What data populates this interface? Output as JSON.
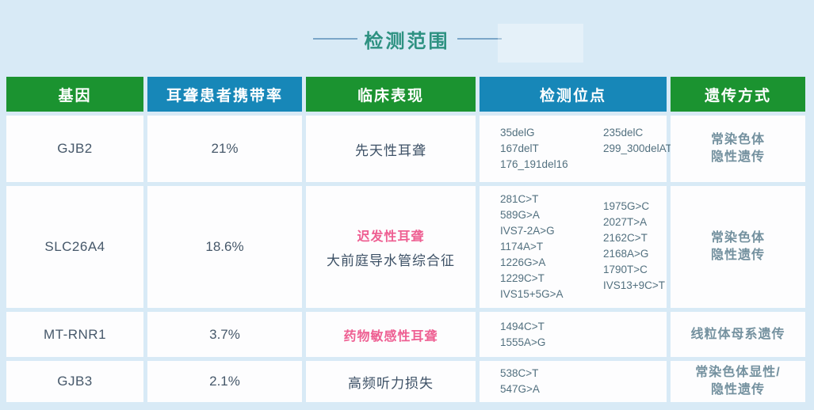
{
  "title": "检测范围",
  "colors": {
    "background": "#d8eaf6",
    "cell_background": "#fdfdfe",
    "header_green": "#1b9330",
    "header_blue": "#1787b8",
    "title_teal": "#2d9181",
    "dash_line": "#7aa6c8",
    "body_text": "#46586a",
    "sites_text": "#52707f",
    "inheritance_text": "#74919f",
    "highlight_pink": "#ee5f92"
  },
  "chart_data": {
    "type": "table",
    "title": "检测范围",
    "columns": [
      {
        "label": "基因",
        "header_color": "green"
      },
      {
        "label": "耳聋患者携带率",
        "header_color": "blue"
      },
      {
        "label": "临床表现",
        "header_color": "green"
      },
      {
        "label": "检测位点",
        "header_color": "blue"
      },
      {
        "label": "遗传方式",
        "header_color": "green"
      }
    ],
    "rows": [
      {
        "gene": "GJB2",
        "carrier_rate": "21%",
        "clinical_highlight": "",
        "clinical_text": "先天性耳聋",
        "sites_col1": [
          "35delG",
          "167delT",
          "176_191del16"
        ],
        "sites_col2": [
          "235delC",
          "299_300delAT"
        ],
        "inheritance_lines": [
          "常染色体",
          "隐性遗传"
        ]
      },
      {
        "gene": "SLC26A4",
        "carrier_rate": "18.6%",
        "clinical_highlight": "迟发性耳聋",
        "clinical_text": "大前庭导水管综合征",
        "sites_col1": [
          "281C>T",
          "589G>A",
          "IVS7-2A>G",
          "1174A>T",
          "1226G>A",
          "1229C>T",
          "IVS15+5G>A"
        ],
        "sites_col2": [
          "1975G>C",
          "2027T>A",
          "2162C>T",
          "2168A>G",
          "1790T>C",
          "IVS13+9C>T"
        ],
        "inheritance_lines": [
          "常染色体",
          "隐性遗传"
        ]
      },
      {
        "gene": "MT-RNR1",
        "carrier_rate": "3.7%",
        "clinical_highlight": "药物敏感性耳聋",
        "clinical_text": "",
        "sites_col1": [
          "1494C>T",
          "1555A>G"
        ],
        "sites_col2": [],
        "inheritance_lines": [
          "线粒体母系遗传"
        ]
      },
      {
        "gene": "GJB3",
        "carrier_rate": "2.1%",
        "clinical_highlight": "",
        "clinical_text": "高频听力损失",
        "sites_col1": [
          "538C>T",
          "547G>A"
        ],
        "sites_col2": [],
        "inheritance_lines": [
          "常染色体显性/",
          "隐性遗传"
        ]
      }
    ]
  }
}
